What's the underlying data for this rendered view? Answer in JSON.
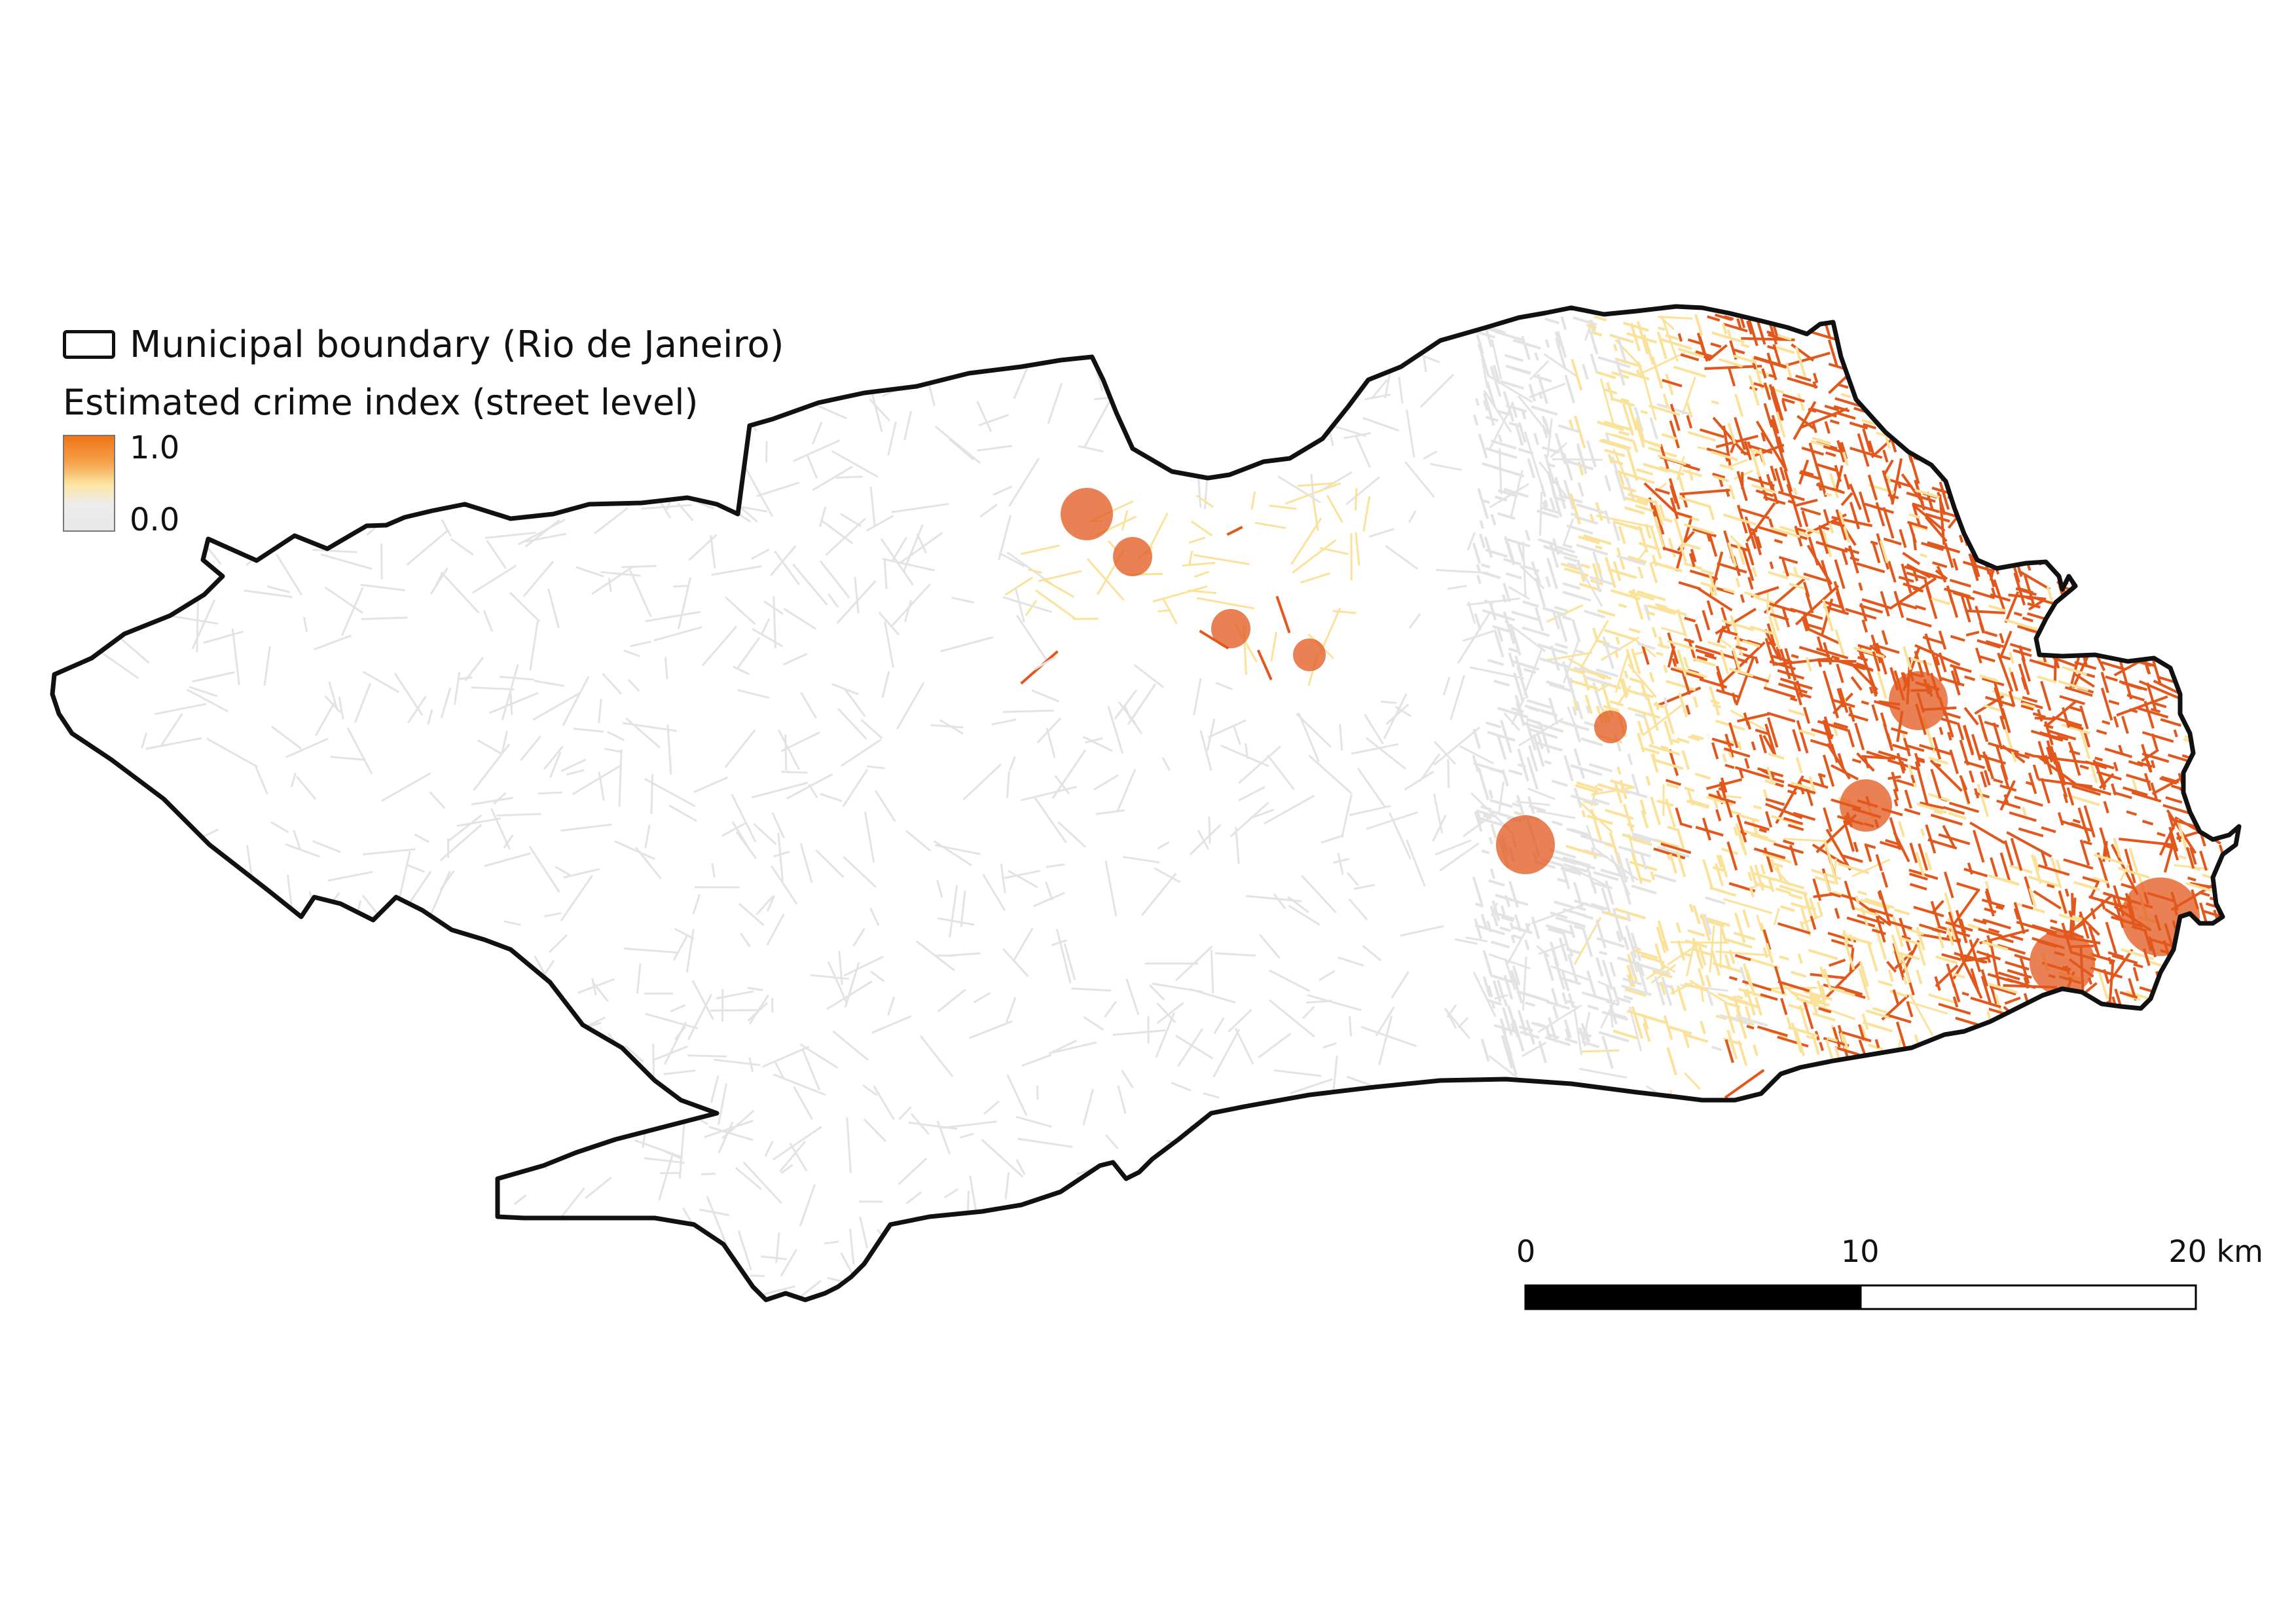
{
  "legend": {
    "boundary_label": "Municipal boundary (Rio de Janeiro)",
    "index_title": "Estimated crime index (street level)",
    "ramp_max": "1.0",
    "ramp_min": "0.0",
    "ramp_colors": [
      "#f07418",
      "#f6a24a",
      "#fde6a6",
      "#e8e8e8"
    ]
  },
  "scalebar": {
    "label_0": "0",
    "label_10": "10",
    "label_20": "20 km"
  },
  "colors": {
    "boundary": "#111111",
    "street_low": "#e3e3e3",
    "street_mid": "#fbe29a",
    "street_high": "#e2571c"
  }
}
